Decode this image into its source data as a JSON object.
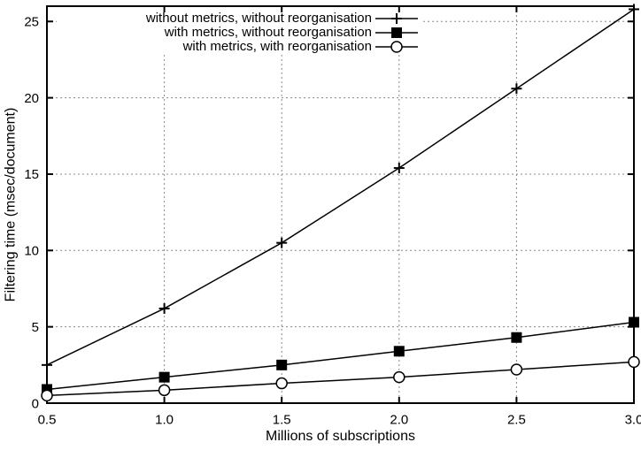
{
  "colors": {
    "background": "#ffffff",
    "axis": "#000000",
    "text": "#000000",
    "grid": "#888888",
    "series": "#000000"
  },
  "chart_data": {
    "type": "line",
    "title": "",
    "xlabel": "Millions of subscriptions",
    "ylabel": "Filtering time (msec/document)",
    "xlim": [
      0.5,
      3.0
    ],
    "ylim": [
      0,
      26
    ],
    "grid": true,
    "legend_position": "top-inside",
    "x": [
      0.5,
      1.0,
      1.5,
      2.0,
      2.5,
      3.0
    ],
    "xticks": [
      0.5,
      1.0,
      1.5,
      2.0,
      2.5,
      3.0
    ],
    "xtick_labels": [
      "0.5",
      "1.0",
      "1.5",
      "2.0",
      "2.5",
      "3.0"
    ],
    "yticks": [
      0,
      5,
      10,
      15,
      20,
      25
    ],
    "ytick_labels": [
      "0",
      "5",
      "10",
      "15",
      "20",
      "25"
    ],
    "series": [
      {
        "name": "without metrics, without reorganisation",
        "marker": "plus",
        "color": "#000000",
        "values": [
          2.5,
          6.2,
          10.5,
          15.4,
          20.6,
          25.8
        ]
      },
      {
        "name": "with metrics, without reorganisation",
        "marker": "filled-square",
        "color": "#000000",
        "values": [
          0.9,
          1.7,
          2.5,
          3.4,
          4.3,
          5.3
        ]
      },
      {
        "name": "with metrics, with reorganisation",
        "marker": "open-circle",
        "color": "#000000",
        "values": [
          0.5,
          0.85,
          1.3,
          1.7,
          2.2,
          2.7
        ]
      }
    ]
  }
}
